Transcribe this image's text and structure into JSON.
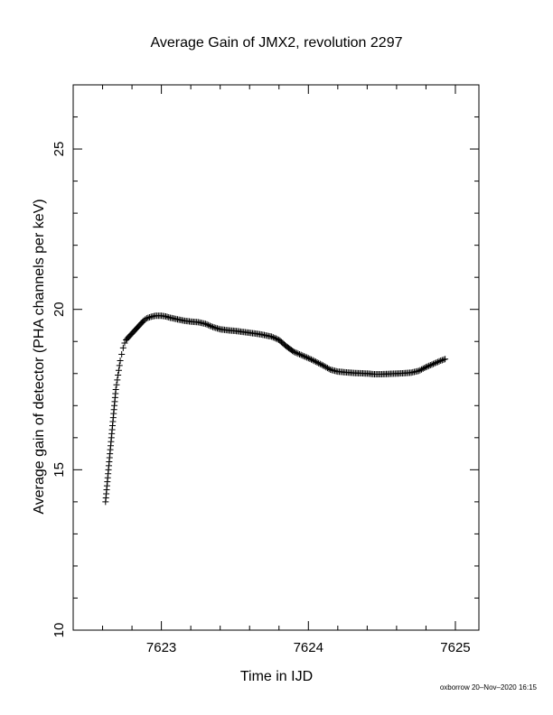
{
  "chart_data": {
    "type": "scatter",
    "title": "Average Gain of JMX2, revolution 2297",
    "xlabel": "Time in IJD",
    "ylabel": "Average gain of detector (PHA channels per keV)",
    "xlim": [
      7622.4,
      7625.16
    ],
    "ylim": [
      10,
      27
    ],
    "xticks": [
      7623,
      7624,
      7625
    ],
    "yticks": [
      10,
      15,
      20,
      25
    ],
    "marker": "plus",
    "grid": false,
    "series": [
      {
        "x": [
          7622.62,
          7622.63,
          7622.64,
          7622.65,
          7622.66,
          7622.67,
          7622.68,
          7622.69,
          7622.7,
          7622.71,
          7622.72,
          7622.73,
          7622.74,
          7622.75,
          7622.76,
          7622.78,
          7622.8,
          7622.82,
          7622.84,
          7622.86,
          7622.88,
          7622.9,
          7622.93,
          7622.96,
          7623.0,
          7623.03,
          7623.06,
          7623.1,
          7623.15,
          7623.2,
          7623.25,
          7623.3,
          7623.35,
          7623.4,
          7623.45,
          7623.5,
          7623.55,
          7623.6,
          7623.65,
          7623.7,
          7623.75,
          7623.8,
          7623.85,
          7623.9,
          7623.95,
          7624.0,
          7624.05,
          7624.1,
          7624.15,
          7624.2,
          7624.25,
          7624.3,
          7624.35,
          7624.4,
          7624.45,
          7624.5,
          7624.55,
          7624.6,
          7624.65,
          7624.7,
          7624.75,
          7624.8,
          7624.85,
          7624.9,
          7624.93
        ],
        "y": [
          14.0,
          14.5,
          15.0,
          15.5,
          16.0,
          16.5,
          17.0,
          17.5,
          17.8,
          18.1,
          18.4,
          18.6,
          18.8,
          18.95,
          19.05,
          19.15,
          19.25,
          19.35,
          19.45,
          19.55,
          19.65,
          19.72,
          19.77,
          19.8,
          19.8,
          19.78,
          19.74,
          19.7,
          19.65,
          19.62,
          19.6,
          19.55,
          19.45,
          19.38,
          19.35,
          19.33,
          19.3,
          19.27,
          19.24,
          19.2,
          19.15,
          19.05,
          18.85,
          18.68,
          18.58,
          18.48,
          18.37,
          18.25,
          18.12,
          18.06,
          18.04,
          18.02,
          18.01,
          18.0,
          17.98,
          17.98,
          17.99,
          18.0,
          18.01,
          18.03,
          18.08,
          18.2,
          18.3,
          18.4,
          18.45
        ]
      }
    ]
  },
  "footer": "oxborrow 20–Nov–2020 16:15"
}
